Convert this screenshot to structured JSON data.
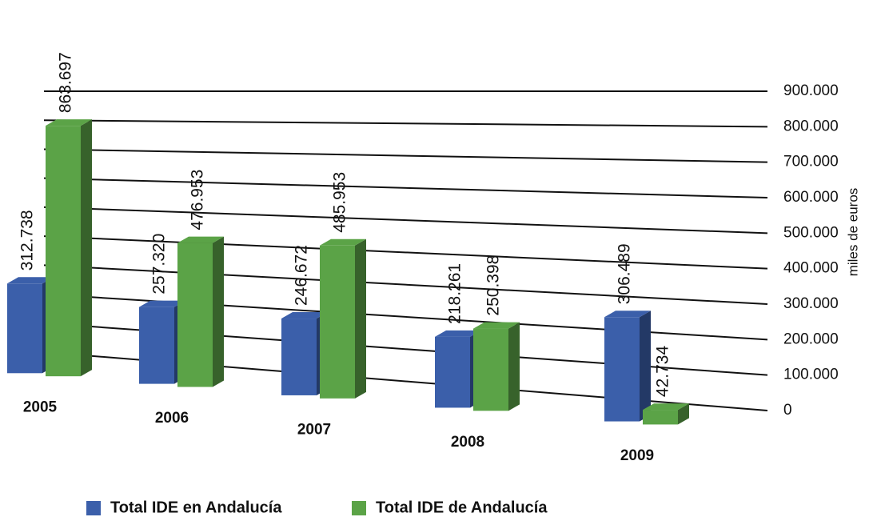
{
  "chart_data": {
    "type": "bar3d",
    "categories": [
      "2005",
      "2006",
      "2007",
      "2008",
      "2009"
    ],
    "series": [
      {
        "name": "Total IDE en Andalucía",
        "color": "#3b5faa",
        "values": [
          312738,
          257320,
          246672,
          218261,
          306489
        ],
        "value_labels": [
          "312.738",
          "257.320",
          "246.672",
          "218.261",
          "306.489"
        ]
      },
      {
        "name": "Total IDE de Andalucía",
        "color": "#5ba347",
        "values": [
          863697,
          476953,
          485953,
          250398,
          42734
        ],
        "value_labels": [
          "863.697",
          "476.953",
          "485.953",
          "250.398",
          "42.734"
        ]
      }
    ],
    "y_label": "miles de euros",
    "ylim": [
      0,
      900000
    ],
    "yticks": [
      0,
      {
        "value": 100000,
        "label": "100.000"
      },
      {
        "value": 200000,
        "label": "200.000"
      },
      {
        "value": 300000,
        "label": "300.000"
      },
      {
        "value": 400000,
        "label": "400.000"
      },
      {
        "value": 500000,
        "label": "500.000"
      },
      {
        "value": 600000,
        "label": "600.000"
      },
      {
        "value": 700000,
        "label": "700.000"
      },
      {
        "value": 800000,
        "label": "800.000"
      },
      {
        "value": 900000,
        "label": "900.000"
      }
    ],
    "grid": true
  }
}
